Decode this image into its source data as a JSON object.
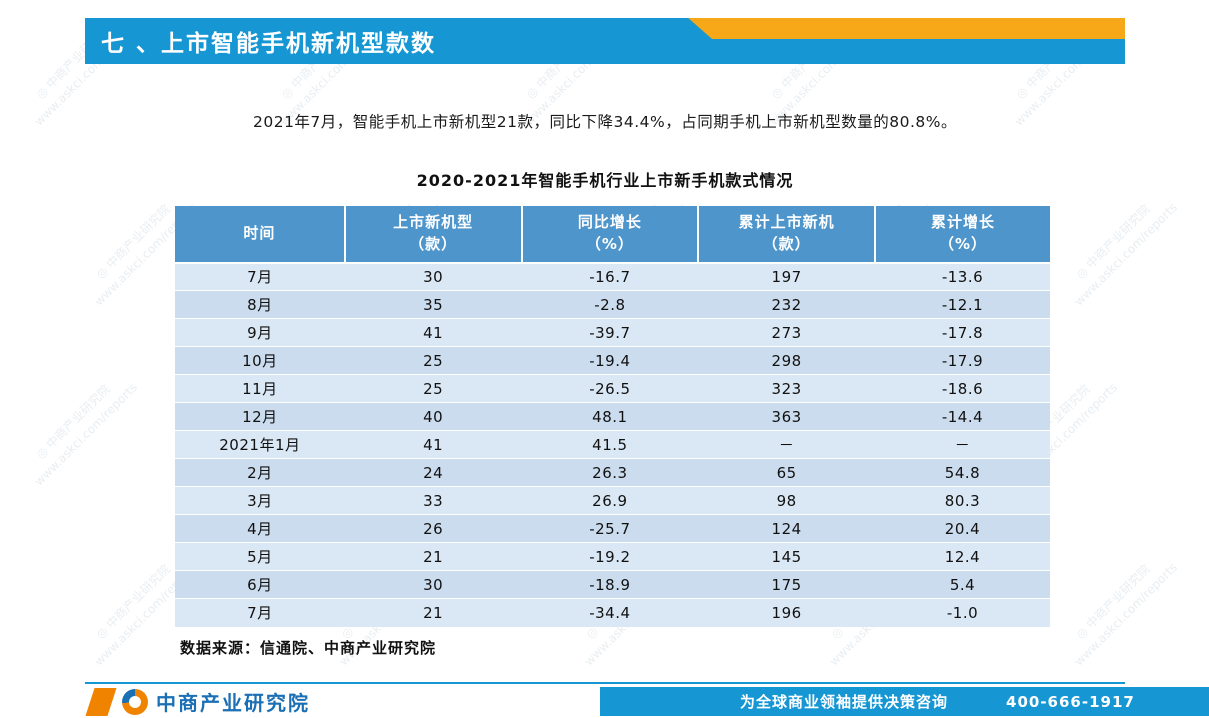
{
  "banner": {
    "title": "七 、上市智能手机新机型款数"
  },
  "intro": {
    "text": "2021年7月，智能手机上市新机型21款，同比下降34.4%，占同期手机上市新机型数量的80.8%。"
  },
  "table": {
    "title": "2020-2021年智能手机行业上市新手机款式情况",
    "columns": [
      {
        "line1": "时间",
        "line2": ""
      },
      {
        "line1": "上市新机型",
        "line2": "（款）"
      },
      {
        "line1": "同比增长",
        "line2": "（%）"
      },
      {
        "line1": "累计上市新机",
        "line2": "（款）"
      },
      {
        "line1": "累计增长",
        "line2": "（%）"
      }
    ],
    "rows": [
      [
        "7月",
        "30",
        "-16.7",
        "197",
        "-13.6"
      ],
      [
        "8月",
        "35",
        "-2.8",
        "232",
        "-12.1"
      ],
      [
        "9月",
        "41",
        "-39.7",
        "273",
        "-17.8"
      ],
      [
        "10月",
        "25",
        "-19.4",
        "298",
        "-17.9"
      ],
      [
        "11月",
        "25",
        "-26.5",
        "323",
        "-18.6"
      ],
      [
        "12月",
        "40",
        "48.1",
        "363",
        "-14.4"
      ],
      [
        "2021年1月",
        "41",
        "41.5",
        "－",
        "－"
      ],
      [
        "2月",
        "24",
        "26.3",
        "65",
        "54.8"
      ],
      [
        "3月",
        "33",
        "26.9",
        "98",
        "80.3"
      ],
      [
        "4月",
        "26",
        "-25.7",
        "124",
        "20.4"
      ],
      [
        "5月",
        "21",
        "-19.2",
        "145",
        "12.4"
      ],
      [
        "6月",
        "30",
        "-18.9",
        "175",
        "5.4"
      ],
      [
        "7月",
        "21",
        "-34.4",
        "196",
        "-1.0"
      ]
    ]
  },
  "source": {
    "text": "数据来源：信通院、中商产业研究院"
  },
  "footer": {
    "logo_text": "中商产业研究院",
    "tagline": "为全球商业领袖提供决策咨询",
    "phone": "400-666-1917"
  },
  "watermark": {
    "text": "中商产业研究院",
    "url": "www.askci.com/reports"
  },
  "colors": {
    "banner-blue": "#1697d4",
    "banner-orange": "#f6a818",
    "table-header-blue": "#4e95cb",
    "row-light": "#dae7f4",
    "row-dark": "#cbdcee",
    "footer-blue": "#1697d4",
    "logo-blue": "#1a6fb5",
    "logo-orange": "#f08300"
  }
}
